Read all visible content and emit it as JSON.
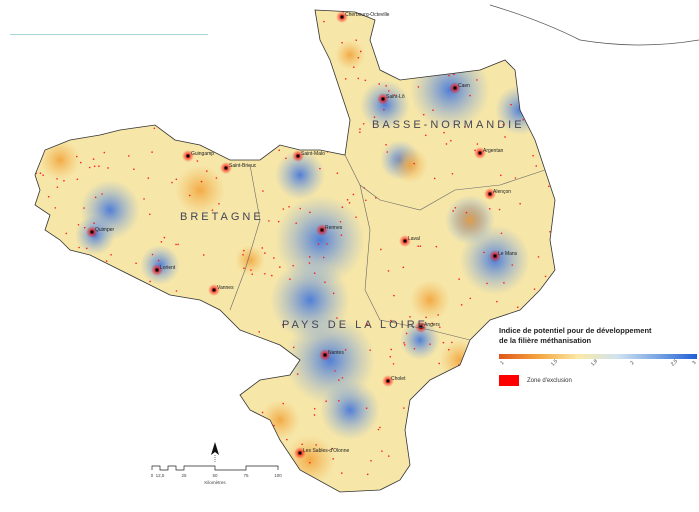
{
  "regions": [
    "BASSE-NORMANDIE",
    "BRETAGNE",
    "PAYS DE LA LOIRE"
  ],
  "cities": [
    {
      "name": "Cherbourg-Octeville"
    },
    {
      "name": "Caen"
    },
    {
      "name": "Saint-Lô"
    },
    {
      "name": "Saint-Malo"
    },
    {
      "name": "Guingamp"
    },
    {
      "name": "Saint-Brieuc"
    },
    {
      "name": "Rennes"
    },
    {
      "name": "Argentan"
    },
    {
      "name": "Alençon"
    },
    {
      "name": "Le Mans"
    },
    {
      "name": "Laval"
    },
    {
      "name": "Quimper"
    },
    {
      "name": "Lorient"
    },
    {
      "name": "Vannes"
    },
    {
      "name": "Angers"
    },
    {
      "name": "Nantes"
    },
    {
      "name": "Cholet"
    },
    {
      "name": "Les Sables-d'Olonne"
    }
  ],
  "legend": {
    "title_line1": "Indice de potentiel pour de développement",
    "title_line2": "de la filière méthanisation",
    "colors": {
      "low": "#e0561a",
      "mid": "#fbe9a6",
      "high": "#1f5fd6"
    },
    "ticks": [
      "1",
      "1,5",
      "1,8",
      "2",
      "2,5",
      "3"
    ],
    "exclusion_label": "Zone d'exclusion",
    "exclusion_color": "#ff0000"
  },
  "scale": {
    "ticks": [
      "0",
      "12,5",
      "25",
      "50",
      "75",
      "100"
    ],
    "unit": "Kilomètres"
  },
  "north_label": "N"
}
